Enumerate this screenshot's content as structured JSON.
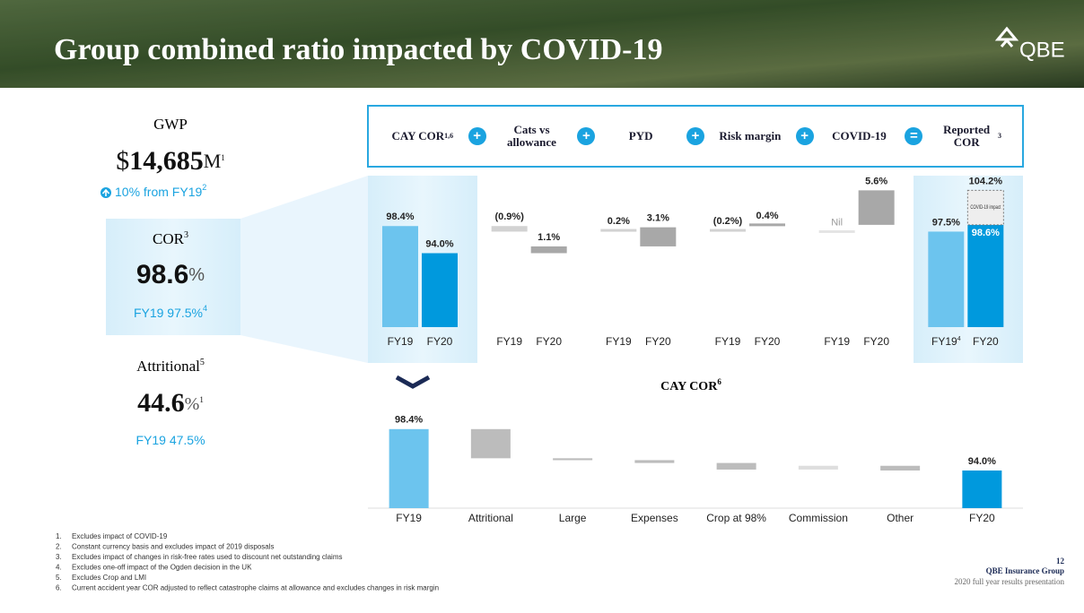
{
  "header": {
    "title": "Group combined ratio impacted by COVID-19",
    "logo": "QBE"
  },
  "kpis": {
    "gwp": {
      "label": "GWP",
      "prefix": "$",
      "value": "14,685",
      "unit": "M",
      "note": "1",
      "change": "10% from FY19",
      "change_note": "2"
    },
    "cor": {
      "label": "COR",
      "label_note": "3",
      "value": "98.6",
      "unit": "%",
      "comparison": "FY19 97.5%",
      "comparison_note": "4"
    },
    "attritional": {
      "label": "Attritional",
      "label_note": "5",
      "value": "44.6",
      "unit": "%",
      "note": "1",
      "comparison": "FY19 47.5%"
    }
  },
  "chart_data": [
    {
      "type": "waterfall",
      "categories": [
        {
          "label": "CAY COR",
          "note": "1,6"
        },
        {
          "label": "Cats vs allowance"
        },
        {
          "label": "PYD"
        },
        {
          "label": "Risk margin"
        },
        {
          "label": "COVID-19"
        },
        {
          "label": "Reported COR",
          "note": "3"
        }
      ],
      "operators": [
        "+",
        "+",
        "+",
        "+",
        "="
      ],
      "series": [
        {
          "name": "FY19",
          "color": "#6cc4ee",
          "step_color": "#d2d2d2",
          "values": [
            98.4,
            -0.9,
            0.2,
            -0.2,
            0,
            97.5
          ],
          "value_labels": [
            "98.4%",
            "(0.9%)",
            "0.2%",
            "(0.2%)",
            "Nil",
            "97.5%"
          ],
          "last_note": "4"
        },
        {
          "name": "FY20",
          "color": "#0099dd",
          "step_color": "#a8a8a8",
          "values": [
            94.0,
            1.1,
            3.1,
            0.4,
            5.6,
            104.2
          ],
          "value_labels": [
            "94.0%",
            "1.1%",
            "3.1%",
            "0.4%",
            "5.6%",
            "104.2%"
          ]
        }
      ],
      "excluding_covid": {
        "value": 98.6,
        "label": "98.6%",
        "annotation": "COVID-19 impact"
      },
      "ylim": [
        82,
        106
      ]
    },
    {
      "type": "waterfall",
      "title": "CAY COR",
      "title_note": "6",
      "categories": [
        "FY19",
        "Attritional",
        "Large",
        "Expenses",
        "Crop at 98%",
        "Commission",
        "Other",
        "FY20"
      ],
      "values": [
        98.4,
        -3.1,
        -0.2,
        -0.3,
        -0.7,
        0.4,
        -0.5,
        94.0
      ],
      "value_labels": [
        "98.4%",
        null,
        null,
        null,
        null,
        null,
        null,
        "94.0%"
      ],
      "colors": [
        "#6cc4ee",
        "#bcbcbc",
        "#bcbcbc",
        "#bcbcbc",
        "#bcbcbc",
        "#dedede",
        "#bcbcbc",
        "#0099dd"
      ],
      "ylim": [
        90,
        100
      ]
    }
  ],
  "footnotes": [
    {
      "number": "1.",
      "text": "Excludes impact of COVID-19"
    },
    {
      "number": "2.",
      "text": "Constant currency basis and excludes impact of 2019 disposals"
    },
    {
      "number": "3.",
      "text": "Excludes impact of changes in risk-free rates used to discount net outstanding claims"
    },
    {
      "number": "4.",
      "text": "Excludes one-off impact of the Ogden decision in the UK"
    },
    {
      "number": "5.",
      "text": "Excludes Crop and LMI"
    },
    {
      "number": "6.",
      "text": "Current accident year COR adjusted to reflect catastrophe claims at allowance and excludes changes in risk margin"
    }
  ],
  "footer": {
    "page": "12",
    "company": "QBE Insurance Group",
    "event": "2020 full year results presentation"
  }
}
